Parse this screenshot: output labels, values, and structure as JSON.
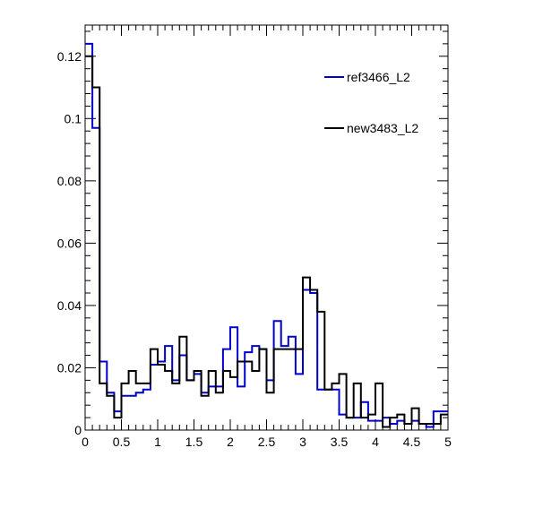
{
  "chart_data": {
    "type": "histogram-step",
    "title": "",
    "xlabel": "",
    "ylabel": "",
    "xlim": [
      0,
      5
    ],
    "ylim": [
      0,
      0.13
    ],
    "bin_width": 0.1,
    "x_ticks": [
      0,
      0.5,
      1,
      1.5,
      2,
      2.5,
      3,
      3.5,
      4,
      4.5,
      5
    ],
    "x_tick_labels": [
      "0",
      "0.5",
      "1",
      "1.5",
      "2",
      "2.5",
      "3",
      "3.5",
      "4",
      "4.5",
      "5"
    ],
    "y_ticks": [
      0,
      0.02,
      0.04,
      0.06,
      0.08,
      0.1,
      0.12
    ],
    "y_tick_labels": [
      "0",
      "0.02",
      "0.04",
      "0.06",
      "0.08",
      "0.1",
      "0.12"
    ],
    "legend_position": "top-right",
    "series": [
      {
        "name": "ref3466_L2",
        "color": "#0000cc",
        "values": [
          0.124,
          0.097,
          0.022,
          0.012,
          0.006,
          0.011,
          0.011,
          0.012,
          0.013,
          0.021,
          0.022,
          0.027,
          0.016,
          0.024,
          0.016,
          0.018,
          0.012,
          0.014,
          0.014,
          0.026,
          0.033,
          0.014,
          0.025,
          0.027,
          0.026,
          0.016,
          0.035,
          0.027,
          0.03,
          0.018,
          0.045,
          0.044,
          0.013,
          0.013,
          0.013,
          0.005,
          0.004,
          0.004,
          0.009,
          0.003,
          0.003,
          0.004,
          0.002,
          0.003,
          0.002,
          0.003,
          0.002,
          0.001,
          0.006,
          0.006
        ]
      },
      {
        "name": "new3483_L2",
        "color": "#000000",
        "values": [
          0.12,
          0.11,
          0.015,
          0.011,
          0.004,
          0.015,
          0.019,
          0.015,
          0.015,
          0.026,
          0.021,
          0.019,
          0.015,
          0.03,
          0.016,
          0.019,
          0.011,
          0.019,
          0.012,
          0.019,
          0.017,
          0.022,
          0.022,
          0.019,
          0.026,
          0.012,
          0.026,
          0.026,
          0.026,
          0.026,
          0.049,
          0.045,
          0.038,
          0.013,
          0.015,
          0.018,
          0.004,
          0.015,
          0.004,
          0.005,
          0.015,
          0.001,
          0.004,
          0.005,
          0.002,
          0.007,
          0.002,
          0.002,
          0.002,
          0.005
        ]
      }
    ]
  }
}
